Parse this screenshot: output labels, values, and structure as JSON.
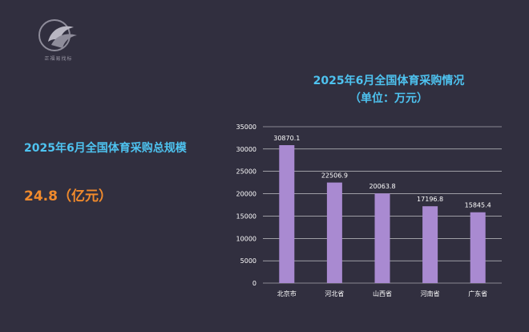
{
  "logo": {
    "text": "正福易找标"
  },
  "summary": {
    "title": "2025年6月全国体育采购总规模",
    "value": "24.8（亿元）"
  },
  "colors": {
    "background": "#312f3f",
    "accent_blue": "#4ec3f0",
    "accent_orange": "#f08a2c",
    "bar": "#a98ad1",
    "grid": "#ffffff"
  },
  "chart_data": {
    "type": "bar",
    "title": "2025年6月全国体育采购情况",
    "subtitle": "（单位：万元）",
    "categories": [
      "北京市",
      "河北省",
      "山西省",
      "河南省",
      "广东省"
    ],
    "values": [
      30870.1,
      22506.9,
      20063.8,
      17196.8,
      15845.4
    ],
    "data_labels": [
      "30870.1",
      "22506.9",
      "20063.8",
      "17196.8",
      "15845.4"
    ],
    "yticks": [
      0,
      5000,
      10000,
      15000,
      20000,
      25000,
      30000,
      35000
    ],
    "ylim": [
      0,
      35000
    ],
    "xlabel": "",
    "ylabel": "",
    "grid": true
  }
}
